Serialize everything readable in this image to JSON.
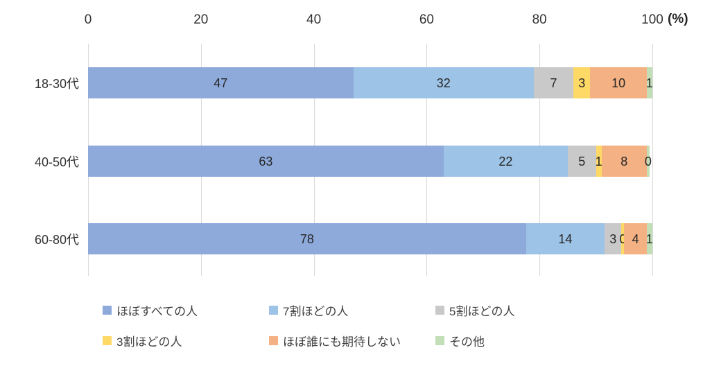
{
  "axis": {
    "unit_label": "(%)"
  },
  "chart_data": {
    "type": "bar",
    "orientation": "horizontal",
    "stacked": true,
    "title": "",
    "xlabel": "",
    "ylabel": "",
    "unit": "(%)",
    "x_ticks": [
      0,
      20,
      40,
      60,
      80,
      100
    ],
    "xlim": [
      0,
      100
    ],
    "grid": true,
    "legend_position": "bottom",
    "categories": [
      "18-30代",
      "40-50代",
      "60-80代"
    ],
    "series": [
      {
        "name": "ほぼすべての人",
        "color": "#8EAADB",
        "values": [
          47,
          63,
          78
        ]
      },
      {
        "name": "7割ほどの人",
        "color": "#9DC3E6",
        "values": [
          32,
          22,
          14
        ]
      },
      {
        "name": "5割ほどの人",
        "color": "#C9C9C9",
        "values": [
          7,
          5,
          3
        ]
      },
      {
        "name": "3割ほどの人",
        "color": "#FFD966",
        "values": [
          3,
          1,
          0
        ]
      },
      {
        "name": "ほぼ誰にも期待しない",
        "color": "#F4B183",
        "values": [
          10,
          8,
          4
        ]
      },
      {
        "name": "その他",
        "color": "#C1DEB6",
        "values": [
          1,
          0,
          1
        ]
      }
    ]
  },
  "style_colors": {
    "gridline": "#d9d9d9",
    "tick_text": "#333333",
    "data_label_text": "#262626",
    "legend_text": "#404040",
    "background": "#ffffff"
  }
}
